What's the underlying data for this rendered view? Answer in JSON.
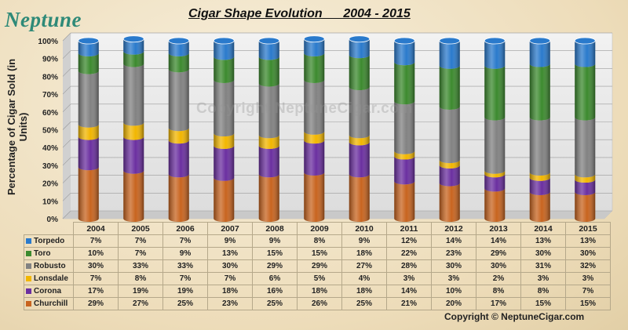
{
  "logo_text": "Neptune",
  "copyright": "Copyright © NeptuneCigar.com",
  "watermark": "Copyright NeptuneCigar.com",
  "chart_data": {
    "type": "bar",
    "stacked": true,
    "percent": true,
    "title": "Cigar Shape Evolution      2004 - 2015",
    "ylabel": "Percentage of Cigar Sold (in Units)",
    "xlabel": "",
    "ylim": [
      0,
      100
    ],
    "y_ticks": [
      "0%",
      "10%",
      "20%",
      "30%",
      "40%",
      "50%",
      "60%",
      "70%",
      "80%",
      "90%",
      "100%"
    ],
    "grid": true,
    "categories": [
      "2004",
      "2005",
      "2006",
      "2007",
      "2008",
      "2009",
      "2010",
      "2011",
      "2012",
      "2013",
      "2014",
      "2015"
    ],
    "series": [
      {
        "name": "Churchill",
        "color": "#c8641f",
        "values": [
          29,
          27,
          25,
          23,
          25,
          26,
          25,
          21,
          20,
          17,
          15,
          15
        ],
        "labels": [
          "29%",
          "27%",
          "25%",
          "23%",
          "25%",
          "26%",
          "25%",
          "21%",
          "20%",
          "17%",
          "15%",
          "15%"
        ]
      },
      {
        "name": "Corona",
        "color": "#6b2fa0",
        "values": [
          17,
          19,
          19,
          18,
          16,
          18,
          18,
          14,
          10,
          8,
          8,
          7
        ],
        "labels": [
          "17%",
          "19%",
          "19%",
          "18%",
          "16%",
          "18%",
          "18%",
          "14%",
          "10%",
          "8%",
          "8%",
          "7%"
        ]
      },
      {
        "name": "Lonsdale",
        "color": "#f2b600",
        "values": [
          7,
          8,
          7,
          7,
          6,
          5,
          4,
          3,
          3,
          2,
          3,
          3
        ],
        "labels": [
          "7%",
          "8%",
          "7%",
          "7%",
          "6%",
          "5%",
          "4%",
          "3%",
          "3%",
          "2%",
          "3%",
          "3%"
        ]
      },
      {
        "name": "Robusto",
        "color": "#828282",
        "values": [
          30,
          33,
          33,
          30,
          29,
          29,
          27,
          28,
          30,
          30,
          31,
          32
        ],
        "labels": [
          "30%",
          "33%",
          "33%",
          "30%",
          "29%",
          "29%",
          "27%",
          "28%",
          "30%",
          "30%",
          "31%",
          "32%"
        ]
      },
      {
        "name": "Toro",
        "color": "#3c8a2e",
        "values": [
          10,
          7,
          9,
          13,
          15,
          15,
          18,
          22,
          23,
          29,
          30,
          30
        ],
        "labels": [
          "10%",
          "7%",
          "9%",
          "13%",
          "15%",
          "15%",
          "18%",
          "22%",
          "23%",
          "29%",
          "30%",
          "30%"
        ]
      },
      {
        "name": "Torpedo",
        "color": "#2a7acc",
        "values": [
          7,
          7,
          7,
          9,
          9,
          8,
          9,
          12,
          14,
          14,
          13,
          13
        ],
        "labels": [
          "7%",
          "7%",
          "7%",
          "9%",
          "9%",
          "8%",
          "9%",
          "12%",
          "14%",
          "14%",
          "13%",
          "13%"
        ]
      }
    ],
    "table_row_order": [
      5,
      4,
      3,
      2,
      1,
      0
    ]
  }
}
